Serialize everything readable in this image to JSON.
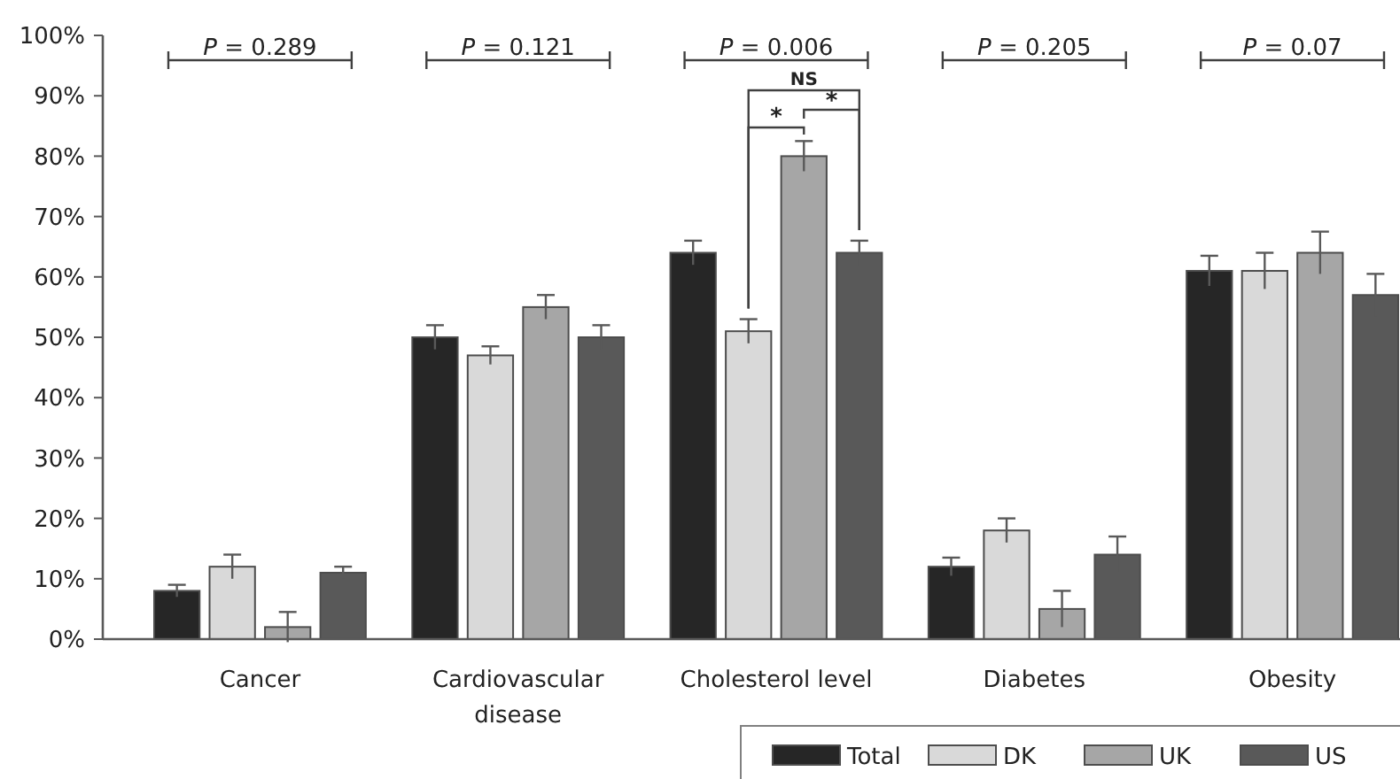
{
  "chart_data": {
    "type": "bar",
    "categories": [
      "Cancer",
      "Cardiovascular disease",
      "Cholesterol level",
      "Diabetes",
      "Obesity"
    ],
    "series": [
      {
        "name": "Total",
        "color": "#262626",
        "values": [
          8,
          50,
          64,
          12,
          61
        ],
        "errors": [
          1,
          2,
          2,
          1.5,
          2.5
        ]
      },
      {
        "name": "DK",
        "color": "#d9d9d9",
        "values": [
          12,
          47,
          51,
          18,
          61
        ],
        "errors": [
          2,
          1.5,
          2,
          2,
          3
        ]
      },
      {
        "name": "UK",
        "color": "#a6a6a6",
        "values": [
          2,
          55,
          80,
          5,
          64
        ],
        "errors": [
          2.5,
          2,
          2.5,
          3,
          3.5
        ]
      },
      {
        "name": "US",
        "color": "#595959",
        "values": [
          11,
          50,
          64,
          14,
          57
        ],
        "errors": [
          1,
          2,
          2,
          3,
          3.5
        ]
      }
    ],
    "ylim": [
      0,
      100
    ],
    "yticks": [
      {
        "value": 0,
        "label": "0%"
      },
      {
        "value": 10,
        "label": "10%"
      },
      {
        "value": 20,
        "label": "20%"
      },
      {
        "value": 30,
        "label": "30%"
      },
      {
        "value": 40,
        "label": "40%"
      },
      {
        "value": 50,
        "label": "50%"
      },
      {
        "value": 60,
        "label": "60%"
      },
      {
        "value": 70,
        "label": "70%"
      },
      {
        "value": 80,
        "label": "80%"
      },
      {
        "value": 90,
        "label": "90%"
      },
      {
        "value": 100,
        "label": "100%"
      }
    ],
    "grid": false,
    "legend": "bottom right",
    "annotations": [
      "P = 0.289",
      "P = 0.121",
      "P = 0.006",
      "P = 0.205",
      "P = 0.07",
      "NS",
      "*",
      "*"
    ]
  }
}
